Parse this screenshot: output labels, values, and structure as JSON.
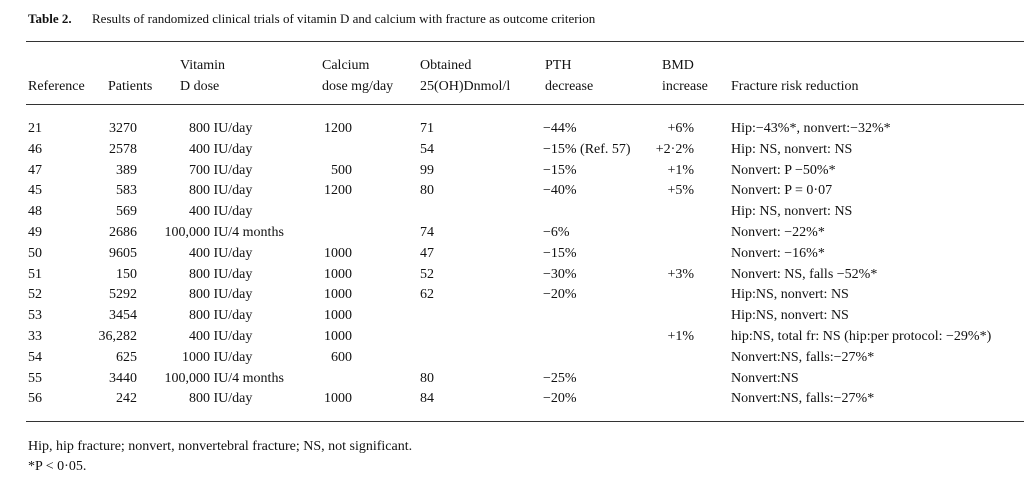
{
  "caption": {
    "label": "Table 2.",
    "text": "Results of randomized clinical trials of vitamin D and calcium with fracture as outcome criterion"
  },
  "table": {
    "header": [
      [
        "Reference"
      ],
      [
        "Patients"
      ],
      [
        "Vitamin",
        "D dose"
      ],
      [
        "Calcium",
        "dose mg/day"
      ],
      [
        "Obtained",
        "25(OH)Dnmol/l"
      ],
      [
        "PTH",
        "decrease"
      ],
      [
        "BMD",
        "increase"
      ],
      [
        "Fracture risk reduction"
      ]
    ],
    "rows": [
      [
        "21",
        "3270",
        "800 IU/day",
        "1200",
        "71",
        "−44%",
        "+6%",
        "Hip:−43%*, nonvert:−32%*"
      ],
      [
        "46",
        "2578",
        "400 IU/day",
        null,
        "54",
        "−15% (Ref. 57)",
        "+2·2%",
        "Hip: NS, nonvert: NS"
      ],
      [
        "47",
        "389",
        "700 IU/day",
        "500",
        "99",
        "−15%",
        "+1%",
        "Nonvert: P −50%*"
      ],
      [
        "45",
        "583",
        "800 IU/day",
        "1200",
        "80",
        "−40%",
        "+5%",
        "Nonvert: P = 0·07"
      ],
      [
        "48",
        "569",
        "400 IU/day",
        null,
        null,
        null,
        null,
        "Hip: NS, nonvert: NS"
      ],
      [
        "49",
        "2686",
        "100,000 IU/4 months",
        null,
        "74",
        "−6%",
        null,
        "Nonvert: −22%*"
      ],
      [
        "50",
        "9605",
        "400 IU/day",
        "1000",
        "47",
        "−15%",
        null,
        "Nonvert: −16%*"
      ],
      [
        "51",
        "150",
        "800 IU/day",
        "1000",
        "52",
        "−30%",
        "+3%",
        "Nonvert: NS, falls −52%*"
      ],
      [
        "52",
        "5292",
        "800 IU/day",
        "1000",
        "62",
        "−20%",
        null,
        "Hip:NS, nonvert: NS"
      ],
      [
        "53",
        "3454",
        "800 IU/day",
        "1000",
        null,
        null,
        null,
        "Hip:NS, nonvert: NS"
      ],
      [
        "33",
        "36,282",
        "400 IU/day",
        "1000",
        null,
        null,
        "+1%",
        "hip:NS, total fr: NS (hip:per protocol: −29%*)"
      ],
      [
        "54",
        "625",
        "1000 IU/day",
        "600",
        null,
        null,
        null,
        "Nonvert:NS, falls:−27%*"
      ],
      [
        "55",
        "3440",
        "100,000 IU/4 months",
        null,
        "80",
        "−25%",
        null,
        "Nonvert:NS"
      ],
      [
        "56",
        "242",
        "800 IU/day",
        "1000",
        "84",
        "−20%",
        null,
        "Nonvert:NS, falls:−27%*"
      ]
    ]
  },
  "footnotes": [
    "Hip, hip fracture; nonvert, nonvertebral fracture; NS, not significant.",
    "*P < 0·05."
  ]
}
